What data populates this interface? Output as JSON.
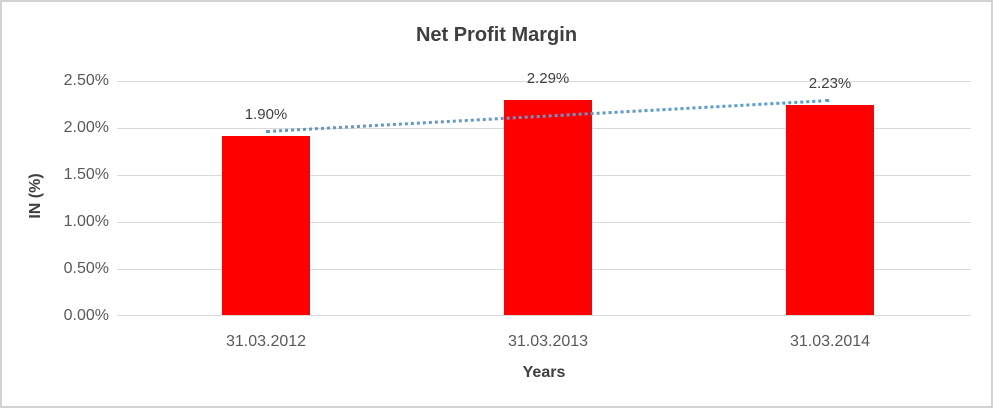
{
  "chart_data": {
    "type": "bar",
    "title": "Net Profit Margin",
    "xlabel": "Years",
    "ylabel": "IN (%)",
    "categories": [
      "31.03.2012",
      "31.03.2013",
      "31.03.2014"
    ],
    "values": [
      1.9,
      2.29,
      2.23
    ],
    "data_labels": [
      "1.90%",
      "2.29%",
      "2.23%"
    ],
    "y_ticks": [
      "0.00%",
      "0.50%",
      "1.00%",
      "1.50%",
      "2.00%",
      "2.50%"
    ],
    "ylim": [
      0,
      2.5
    ],
    "grid": true,
    "legend": "none",
    "bar_color": "#ff0000",
    "trendline": {
      "type": "linear",
      "style": "dotted",
      "color": "#5b9bd5"
    },
    "colors": {
      "title_text": "#3f3f3f",
      "tick_text": "#595959",
      "gridline": "#d9d9d9",
      "border": "#d2d2d2"
    }
  }
}
